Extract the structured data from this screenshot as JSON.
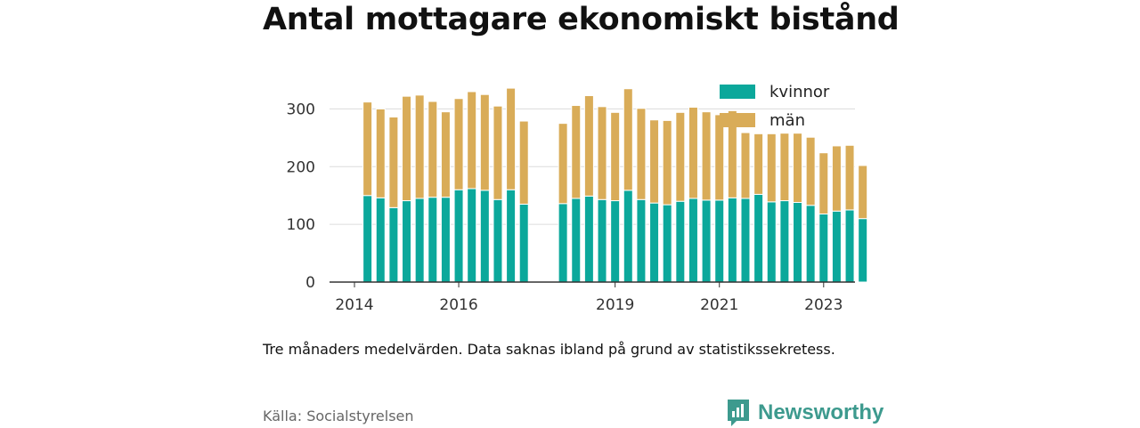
{
  "chart_data": {
    "type": "bar",
    "stacked": true,
    "title": "Antal mottagare ekonomiskt bistånd",
    "xlabel": "",
    "ylabel": "",
    "ylim": [
      0,
      350
    ],
    "yticks": [
      0,
      100,
      200,
      300
    ],
    "x_ticks": [
      2014,
      2016,
      2019,
      2021,
      2023
    ],
    "x_range": [
      2014.0,
      2024.08
    ],
    "legend_position": "top-right",
    "grid": true,
    "x": [
      2014.25,
      2014.5,
      2014.75,
      2015.0,
      2015.25,
      2015.5,
      2015.75,
      2016.0,
      2016.25,
      2016.5,
      2016.75,
      2017.0,
      2017.25,
      2018.0,
      2018.25,
      2018.5,
      2018.75,
      2019.0,
      2019.25,
      2019.5,
      2019.75,
      2020.0,
      2020.25,
      2020.5,
      2020.75,
      2021.0,
      2021.25,
      2021.5,
      2021.75,
      2022.0,
      2022.25,
      2022.5,
      2022.75,
      2023.0,
      2023.25,
      2023.5,
      2023.75
    ],
    "series": [
      {
        "name": "kvinnor",
        "color": "#0ba89b",
        "values": [
          150,
          146,
          129,
          141,
          145,
          147,
          147,
          160,
          162,
          159,
          143,
          160,
          135,
          136,
          145,
          149,
          143,
          141,
          159,
          143,
          137,
          134,
          140,
          145,
          142,
          142,
          146,
          145,
          152,
          139,
          141,
          138,
          133,
          118,
          123,
          125,
          110
        ]
      },
      {
        "name": "män",
        "color": "#d9ac58",
        "values": [
          162,
          154,
          157,
          181,
          179,
          166,
          148,
          158,
          168,
          166,
          162,
          176,
          144,
          139,
          161,
          174,
          161,
          153,
          176,
          158,
          144,
          146,
          154,
          158,
          153,
          148,
          151,
          114,
          105,
          118,
          117,
          120,
          118,
          106,
          113,
          112,
          92
        ]
      }
    ],
    "note": "Tre månaders medelvärden. Data saknas ibland på grund av statistikssekretess.",
    "source": "Källa: Socialstyrelsen"
  },
  "brand": {
    "name": "Newsworthy",
    "icon": "newsworthy-logo-icon",
    "color": "#3d9a8e"
  }
}
